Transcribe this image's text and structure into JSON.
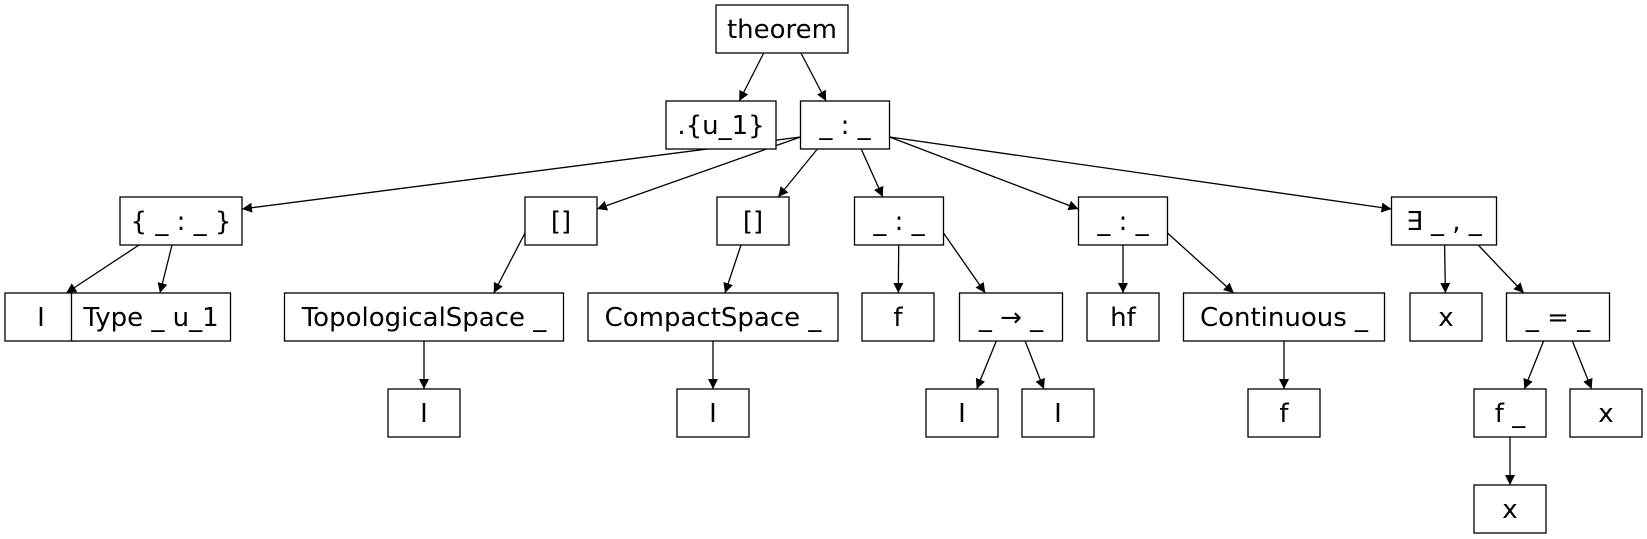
{
  "nodes": [
    {
      "id": "n_theorem",
      "label": "theorem"
    },
    {
      "id": "n_univ",
      "label": ".{u_1}"
    },
    {
      "id": "n_colon1",
      "label": "_ : _"
    },
    {
      "id": "n_implicit",
      "label": "{ _ : _ }"
    },
    {
      "id": "n_inst1",
      "label": "[]"
    },
    {
      "id": "n_inst2",
      "label": "[]"
    },
    {
      "id": "n_colon2",
      "label": "_ : _"
    },
    {
      "id": "n_colon3",
      "label": "_ : _"
    },
    {
      "id": "n_exists",
      "label": "∃ _ , _"
    },
    {
      "id": "n_I1",
      "label": "I"
    },
    {
      "id": "n_type",
      "label": "Type _ u_1"
    },
    {
      "id": "n_topo",
      "label": "TopologicalSpace _"
    },
    {
      "id": "n_compact",
      "label": "CompactSpace _"
    },
    {
      "id": "n_f1",
      "label": "f"
    },
    {
      "id": "n_arrow",
      "label": "_ → _"
    },
    {
      "id": "n_hf",
      "label": "hf"
    },
    {
      "id": "n_cont",
      "label": "Continuous _"
    },
    {
      "id": "n_x1",
      "label": "x"
    },
    {
      "id": "n_eq",
      "label": "_ = _"
    },
    {
      "id": "n_I2",
      "label": "I"
    },
    {
      "id": "n_I3",
      "label": "I"
    },
    {
      "id": "n_I4",
      "label": "I"
    },
    {
      "id": "n_I5",
      "label": "I"
    },
    {
      "id": "n_f2",
      "label": "f"
    },
    {
      "id": "n_fapp",
      "label": "f _"
    },
    {
      "id": "n_x2",
      "label": "x"
    },
    {
      "id": "n_x3",
      "label": "x"
    }
  ],
  "edges": [
    [
      "n_theorem",
      "n_univ"
    ],
    [
      "n_theorem",
      "n_colon1"
    ],
    [
      "n_colon1",
      "n_implicit"
    ],
    [
      "n_colon1",
      "n_inst1"
    ],
    [
      "n_colon1",
      "n_inst2"
    ],
    [
      "n_colon1",
      "n_colon2"
    ],
    [
      "n_colon1",
      "n_colon3"
    ],
    [
      "n_colon1",
      "n_exists"
    ],
    [
      "n_implicit",
      "n_I1"
    ],
    [
      "n_implicit",
      "n_type"
    ],
    [
      "n_inst1",
      "n_topo"
    ],
    [
      "n_inst2",
      "n_compact"
    ],
    [
      "n_colon2",
      "n_f1"
    ],
    [
      "n_colon2",
      "n_arrow"
    ],
    [
      "n_colon3",
      "n_hf"
    ],
    [
      "n_colon3",
      "n_cont"
    ],
    [
      "n_exists",
      "n_x1"
    ],
    [
      "n_exists",
      "n_eq"
    ],
    [
      "n_topo",
      "n_I2"
    ],
    [
      "n_compact",
      "n_I3"
    ],
    [
      "n_arrow",
      "n_I4"
    ],
    [
      "n_arrow",
      "n_I5"
    ],
    [
      "n_cont",
      "n_f2"
    ],
    [
      "n_eq",
      "n_fapp"
    ],
    [
      "n_eq",
      "n_x2"
    ],
    [
      "n_fapp",
      "n_x3"
    ]
  ]
}
